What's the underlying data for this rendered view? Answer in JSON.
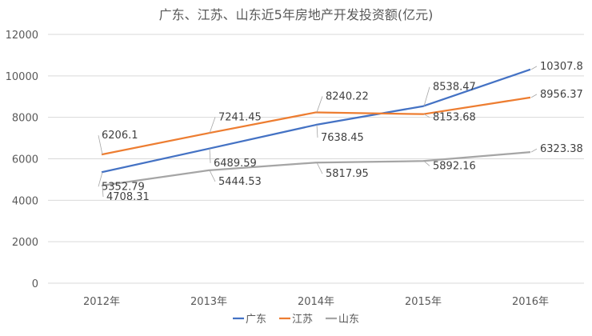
{
  "chart_data": {
    "type": "line",
    "title": "广东、江苏、山东近5年房地产开发投资额(亿元)",
    "categories": [
      "2012年",
      "2013年",
      "2014年",
      "2015年",
      "2016年"
    ],
    "series": [
      {
        "name": "广东",
        "color": "#4472C4",
        "values": [
          5352.79,
          6489.59,
          7638.45,
          8538.47,
          10307.8
        ]
      },
      {
        "name": "江苏",
        "color": "#ED7D31",
        "values": [
          6206.1,
          7241.45,
          8240.22,
          8153.68,
          8956.37
        ]
      },
      {
        "name": "山东",
        "color": "#A5A5A5",
        "values": [
          4708.31,
          5444.53,
          5817.95,
          5892.16,
          6323.38
        ]
      }
    ],
    "ylim": [
      0,
      12000
    ],
    "yticks": [
      0,
      2000,
      4000,
      6000,
      8000,
      10000,
      12000
    ],
    "grid": true,
    "legend_position": "bottom"
  }
}
